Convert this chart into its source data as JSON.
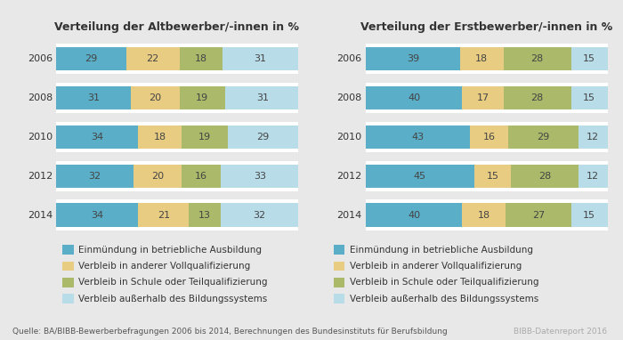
{
  "title_left": "Verteilung der Altbewerber/-innen in %",
  "title_right": "Verteilung der Erstbewerber/-innen in %",
  "years": [
    "2006",
    "2008",
    "2010",
    "2012",
    "2014"
  ],
  "alt_data": [
    [
      29,
      22,
      18,
      31
    ],
    [
      31,
      20,
      19,
      31
    ],
    [
      34,
      18,
      19,
      29
    ],
    [
      32,
      20,
      16,
      33
    ],
    [
      34,
      21,
      13,
      32
    ]
  ],
  "erst_data": [
    [
      39,
      18,
      28,
      15
    ],
    [
      40,
      17,
      28,
      15
    ],
    [
      43,
      16,
      29,
      12
    ],
    [
      45,
      15,
      28,
      12
    ],
    [
      40,
      18,
      27,
      15
    ]
  ],
  "colors": [
    "#5aaec8",
    "#e8cc82",
    "#aab96a",
    "#b8dce8"
  ],
  "text_color": "#333333",
  "bar_text_color": "#444444",
  "background_color": "#e8e8e8",
  "panel_bg": "#e0e0e0",
  "legend_labels": [
    "Einmündung in betriebliche Ausbildung",
    "Verbleib in anderer Vollqualifizierung",
    "Verbleib in Schule oder Teilqualifizierung",
    "Verbleib außerhalb des Bildungssystems"
  ],
  "source_text": "Quelle: BA/BIBB-Bewerberbefragungen 2006 bis 2014, Berechnungen des Bundesinstituts für Berufsbildung",
  "source_right": "BIBB-Datenreport 2016",
  "title_fontsize": 9,
  "label_fontsize": 8,
  "year_fontsize": 8,
  "bar_fontsize": 8,
  "legend_fontsize": 7.5,
  "source_fontsize": 6.5,
  "bar_height": 0.6
}
